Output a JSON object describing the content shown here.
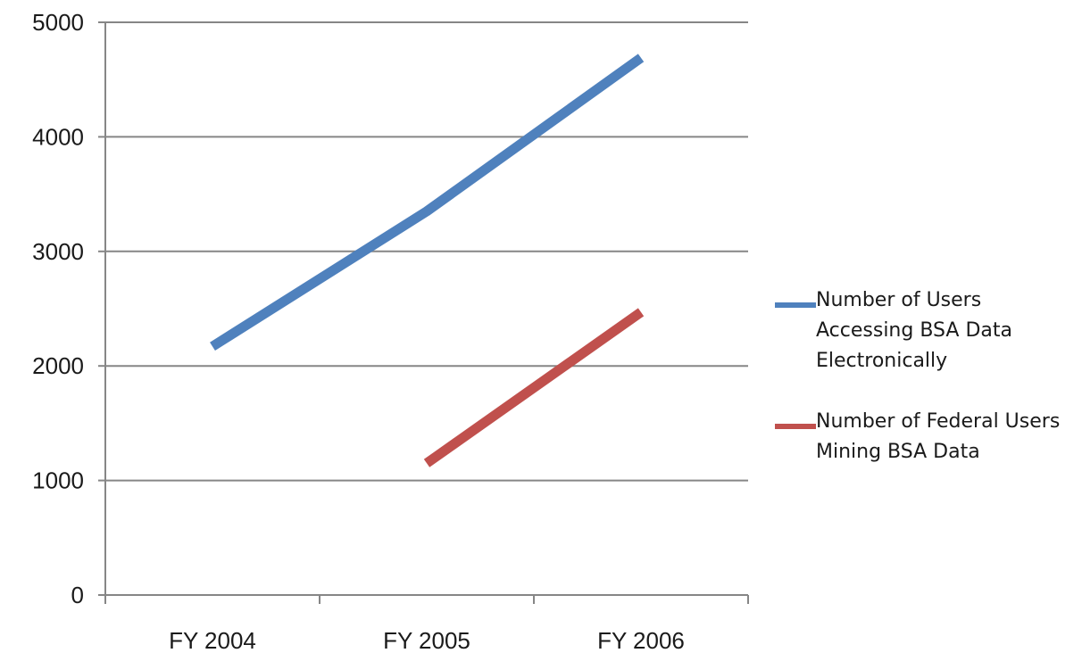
{
  "chart_data": {
    "type": "line",
    "categories": [
      "FY 2004",
      "FY 2005",
      "FY 2006"
    ],
    "series": [
      {
        "name": "Number of Users Accessing BSA Data Electronically",
        "values": [
          2170,
          3350,
          4690
        ],
        "color": "#4f81bd"
      },
      {
        "name": "Number of Federal Users Mining BSA Data",
        "values": [
          null,
          1150,
          2470
        ],
        "color": "#c0504d"
      }
    ],
    "title": "",
    "xlabel": "",
    "ylabel": "",
    "ylim": [
      0,
      5000
    ],
    "yticks": [
      "0",
      "1000",
      "2000",
      "3000",
      "4000",
      "5000"
    ],
    "grid": true,
    "legend_position": "right"
  }
}
